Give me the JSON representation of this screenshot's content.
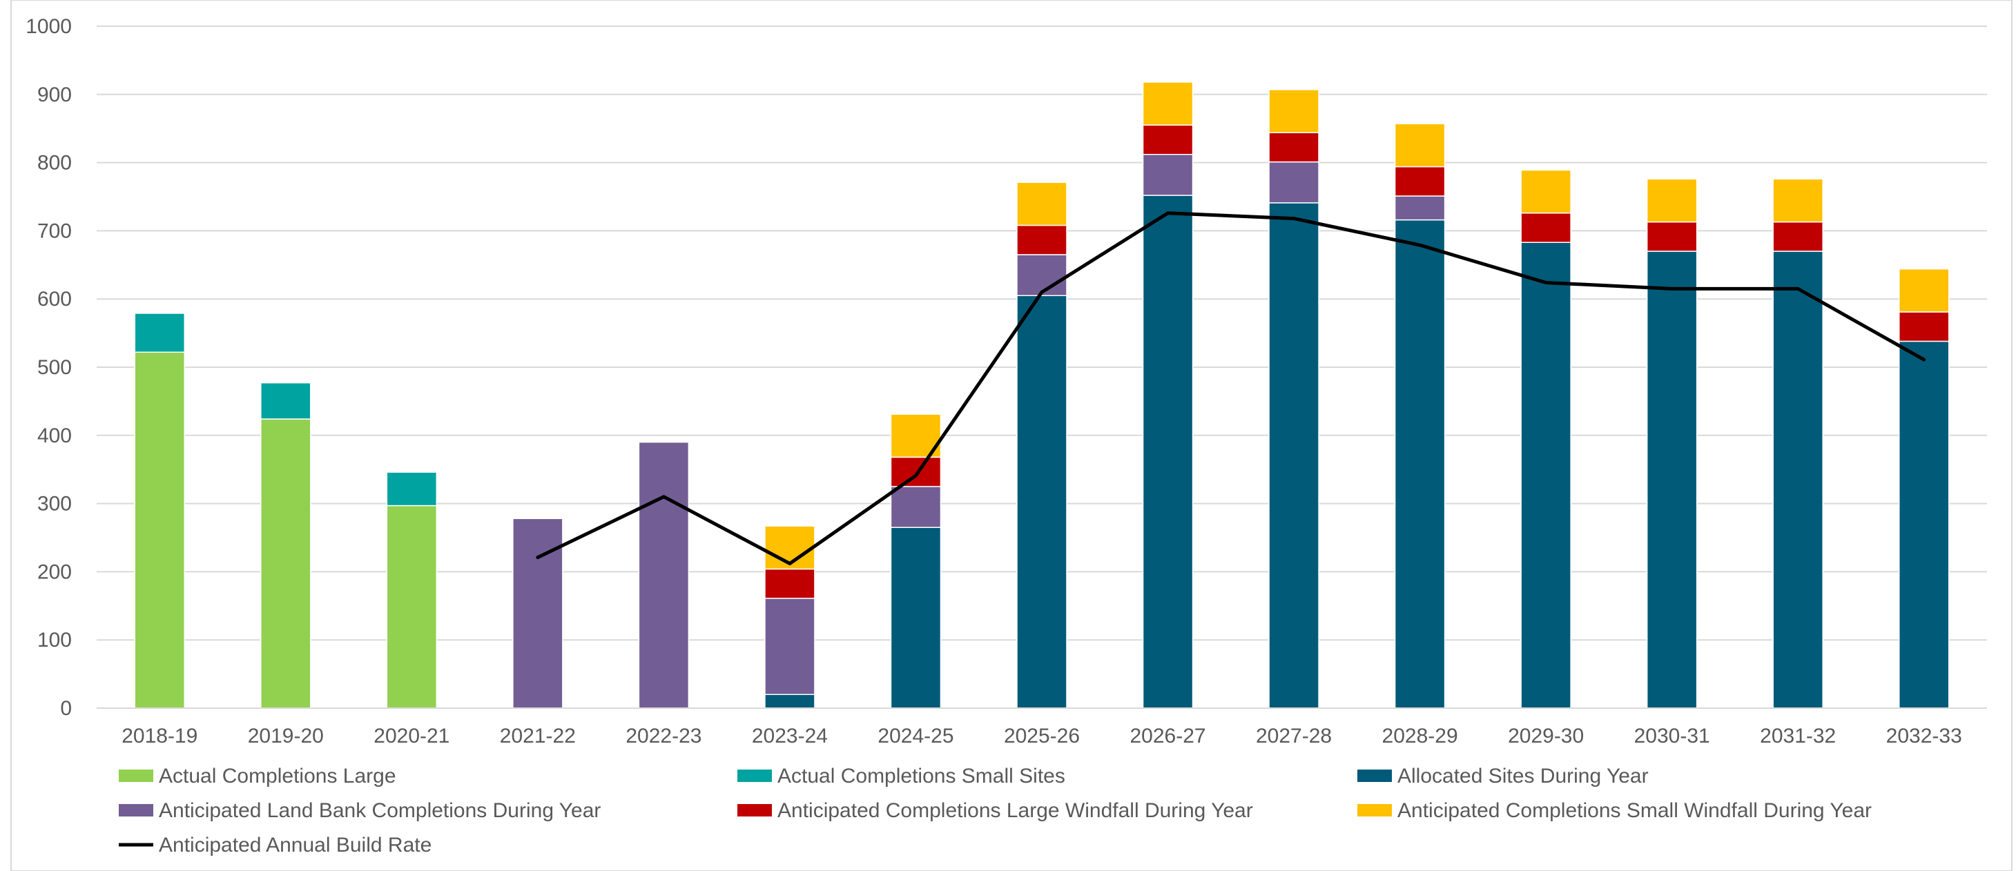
{
  "chart_data": {
    "type": "bar",
    "stacked": true,
    "categories": [
      "2018-19",
      "2019-20",
      "2020-21",
      "2021-22",
      "2022-23",
      "2023-24",
      "2024-25",
      "2025-26",
      "2026-27",
      "2027-28",
      "2028-29",
      "2029-30",
      "2030-31",
      "2031-32",
      "2032-33"
    ],
    "ylim": [
      0,
      1000
    ],
    "yticks": [
      0,
      100,
      200,
      300,
      400,
      500,
      600,
      700,
      800,
      900,
      1000
    ],
    "grid": true,
    "legend_position": "bottom",
    "series": [
      {
        "name": "Actual Completions Large",
        "color": "#92d050",
        "values": [
          522,
          424,
          297,
          0,
          0,
          0,
          0,
          0,
          0,
          0,
          0,
          0,
          0,
          0,
          0
        ]
      },
      {
        "name": "Actual Completions Small Sites",
        "color": "#00a3a0",
        "values": [
          57,
          53,
          49,
          0,
          0,
          0,
          0,
          0,
          0,
          0,
          0,
          0,
          0,
          0,
          0
        ]
      },
      {
        "name": "Allocated Sites During Year",
        "color": "#005a78",
        "values": [
          0,
          0,
          0,
          0,
          0,
          20,
          265,
          605,
          752,
          741,
          716,
          683,
          670,
          670,
          538
        ]
      },
      {
        "name": "Anticipated Land Bank Completions During Year",
        "color": "#725d94",
        "values": [
          0,
          0,
          0,
          278,
          390,
          141,
          60,
          60,
          60,
          60,
          35,
          0,
          0,
          0,
          0
        ]
      },
      {
        "name": "Anticipated Completions Large Windfall During Year",
        "color": "#c00000",
        "values": [
          0,
          0,
          0,
          0,
          0,
          43,
          43,
          43,
          43,
          43,
          43,
          43,
          43,
          43,
          43
        ]
      },
      {
        "name": "Anticipated Completions Small Windfall During Year",
        "color": "#ffc000",
        "values": [
          0,
          0,
          0,
          0,
          0,
          63,
          63,
          63,
          63,
          63,
          63,
          63,
          63,
          63,
          63
        ]
      }
    ],
    "line_series": {
      "name": "Anticipated Annual Build Rate",
      "color": "#000000",
      "values": [
        null,
        null,
        null,
        221,
        310,
        212,
        341,
        610,
        726,
        718,
        679,
        624,
        615,
        615,
        511
      ]
    }
  }
}
